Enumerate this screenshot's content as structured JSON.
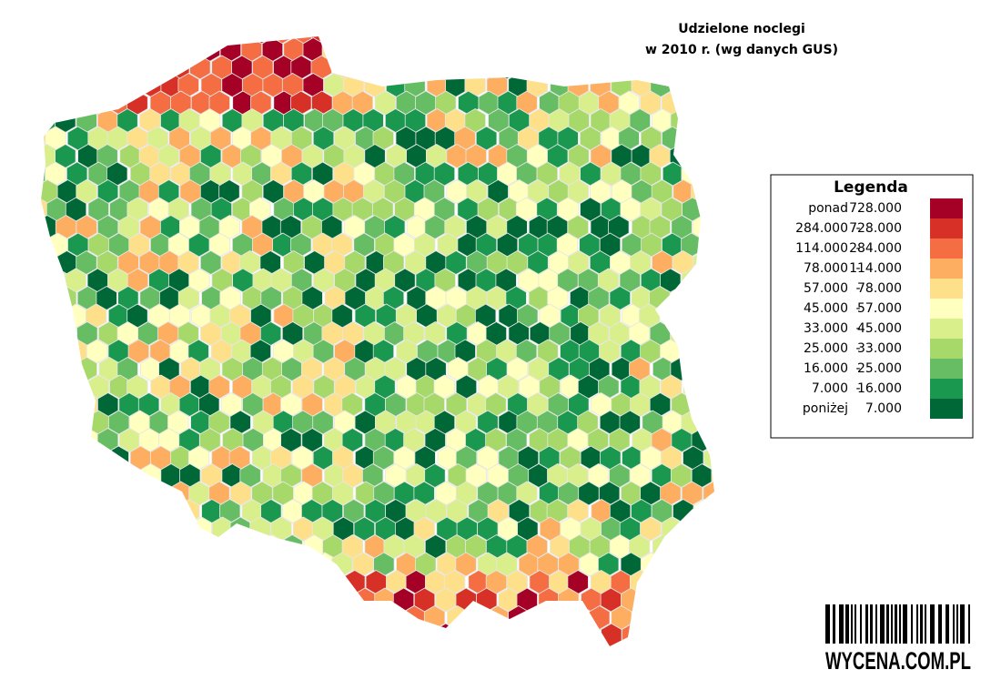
{
  "header": {
    "title_line1": "Udzielone noclegi",
    "title_line2": "w 2010 r. (wg danych GUS)"
  },
  "legend": {
    "title": "Legenda",
    "separator": "-",
    "rows": [
      {
        "low": "ponad",
        "high": "728.000",
        "color": "#a50026"
      },
      {
        "low": "284.000",
        "high": "728.000",
        "color": "#d73027"
      },
      {
        "low": "114.000",
        "high": "284.000",
        "color": "#f46d43"
      },
      {
        "low": "78.000",
        "high": "114.000",
        "color": "#fdae61"
      },
      {
        "low": "57.000",
        "high": "78.000",
        "color": "#fee08b"
      },
      {
        "low": "45.000",
        "high": "57.000",
        "color": "#ffffbf"
      },
      {
        "low": "33.000",
        "high": "45.000",
        "color": "#d9ef8b"
      },
      {
        "low": "25.000",
        "high": "33.000",
        "color": "#a6d96a"
      },
      {
        "low": "16.000",
        "high": "25.000",
        "color": "#66bd63"
      },
      {
        "low": "7.000",
        "high": "16.000",
        "color": "#1a9850"
      },
      {
        "low": "poniżej",
        "high": "7.000",
        "color": "#006837"
      }
    ]
  },
  "logo": {
    "text": "WYCENA.COM.PL"
  }
}
